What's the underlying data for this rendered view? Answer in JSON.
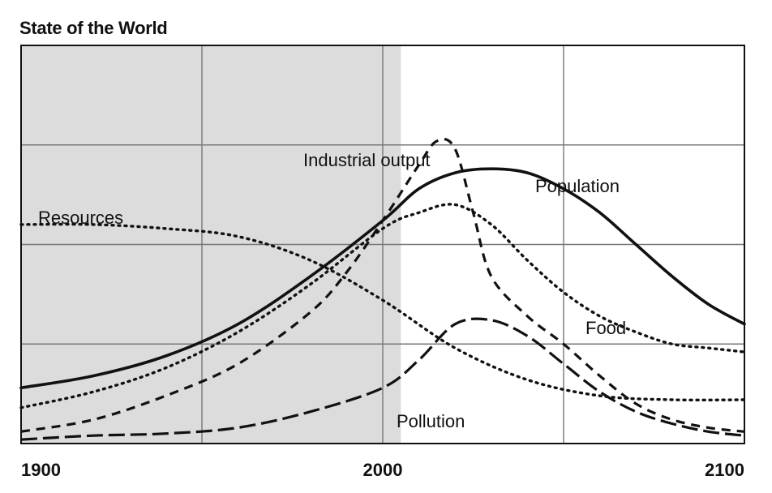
{
  "chart_data": {
    "type": "line",
    "title": "State of the World",
    "xlabel": "",
    "ylabel": "",
    "xlim": [
      1900,
      2100
    ],
    "ylim": [
      0,
      100
    ],
    "grid": true,
    "shaded_region": [
      1900,
      2005
    ],
    "x_ticks": [
      "1900",
      "2000",
      "2100"
    ],
    "series": [
      {
        "name": "Population",
        "style": "solid",
        "x": [
          1900,
          1920,
          1940,
          1960,
          1980,
          2000,
          2010,
          2020,
          2030,
          2040,
          2050,
          2060,
          2070,
          2080,
          2090,
          2100
        ],
        "values": [
          14,
          17,
          22,
          30,
          42,
          56,
          64,
          68,
          69,
          68,
          64,
          58,
          50,
          42,
          35,
          30
        ]
      },
      {
        "name": "Industrial output",
        "style": "dashed",
        "x": [
          1900,
          1920,
          1940,
          1960,
          1980,
          1990,
          2000,
          2010,
          2015,
          2020,
          2025,
          2030,
          2040,
          2050,
          2060,
          2070,
          2080,
          2090,
          2100
        ],
        "values": [
          3,
          6,
          12,
          20,
          33,
          43,
          56,
          70,
          76,
          74,
          58,
          42,
          32,
          25,
          17,
          10,
          6,
          4,
          3
        ]
      },
      {
        "name": "Food",
        "style": "dotted",
        "x": [
          1900,
          1920,
          1940,
          1960,
          1980,
          2000,
          2010,
          2020,
          2030,
          2040,
          2050,
          2060,
          2070,
          2080,
          2090,
          2100
        ],
        "values": [
          9,
          13,
          19,
          28,
          40,
          54,
          58,
          60,
          55,
          46,
          38,
          32,
          28,
          25,
          24,
          23
        ]
      },
      {
        "name": "Resources",
        "style": "dotted",
        "x": [
          1900,
          1920,
          1940,
          1960,
          1980,
          2000,
          2020,
          2040,
          2060,
          2080,
          2100
        ],
        "values": [
          55,
          55,
          54,
          52,
          46,
          36,
          24,
          16,
          12,
          11,
          11
        ]
      },
      {
        "name": "Pollution",
        "style": "long-dashed",
        "x": [
          1900,
          1920,
          1940,
          1960,
          1980,
          2000,
          2010,
          2020,
          2030,
          2040,
          2050,
          2060,
          2070,
          2080,
          2090,
          2100
        ],
        "values": [
          1,
          2,
          2.5,
          4,
          8,
          14,
          21,
          30,
          31,
          27,
          20,
          13,
          8,
          5,
          3,
          2
        ]
      }
    ],
    "annotations": [
      {
        "text": "Industrial output",
        "series": "Industrial output"
      },
      {
        "text": "Population",
        "series": "Population"
      },
      {
        "text": "Resources",
        "series": "Resources"
      },
      {
        "text": "Food",
        "series": "Food"
      },
      {
        "text": "Pollution",
        "series": "Pollution"
      }
    ]
  }
}
